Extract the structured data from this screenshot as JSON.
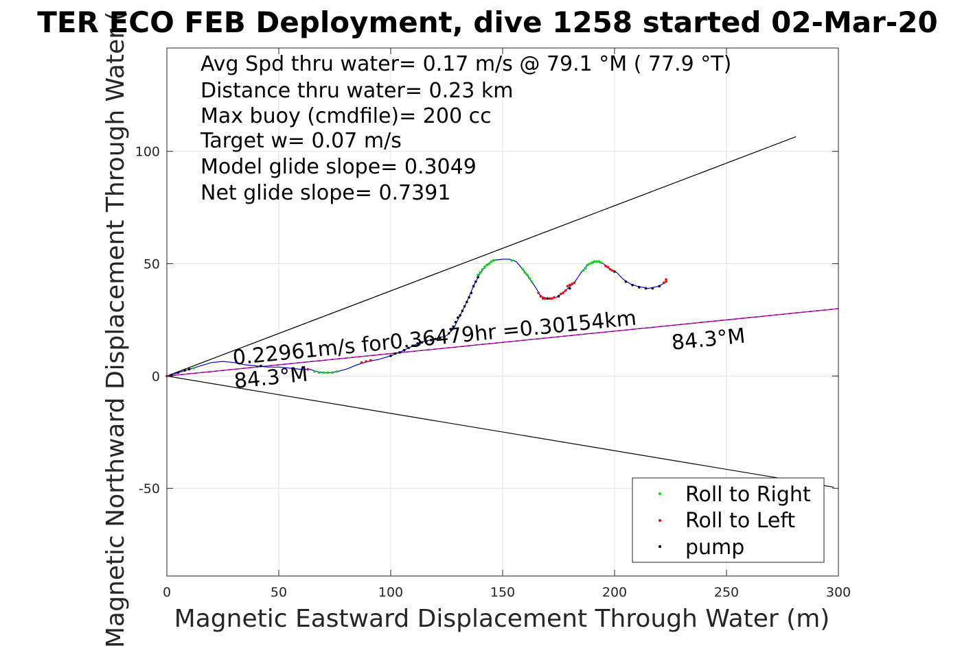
{
  "title": "TER ECO FEB Deployment, dive 1258 started 02-Mar-20",
  "info_lines": [
    "Avg Spd thru water=  0.17 m/s @  79.1 °M ( 77.9 °T)",
    "Distance thru water=  0.23 km",
    "Max buoy (cmdfile)= 200 cc",
    "Target w= 0.07 m/s",
    "Model glide slope= 0.3049",
    "Net glide slope= 0.7391"
  ],
  "annotations": {
    "speed_label": "0.22961m/s for0.36479hr =0.30154km",
    "heading_label_near": "84.3°M",
    "heading_label_far": "84.3°M"
  },
  "chart_data": {
    "type": "line",
    "title": "TER ECO FEB Deployment, dive 1258 started 02-Mar-20",
    "xlabel": "Magnetic Eastward Displacement Through Water (m)",
    "ylabel": "Magnetic Northward Displacement Through Water (",
    "xlim": [
      0,
      300
    ],
    "ylim": [
      -89,
      146
    ],
    "xticks": [
      0,
      50,
      100,
      150,
      200,
      250,
      300
    ],
    "yticks": [
      -50,
      0,
      50,
      100
    ],
    "grid": true,
    "legend_position": "bottom-right",
    "legend": [
      "Roll to Right",
      "Roll to Left",
      "pump"
    ],
    "colors": {
      "track": "#0000ff",
      "roll_right": "#00dd00",
      "roll_left": "#ff0000",
      "pump": "#000000",
      "cone": "#000000",
      "heading_line": "#cc00cc"
    },
    "track": [
      [
        0,
        0
      ],
      [
        5,
        1.5
      ],
      [
        10,
        3
      ],
      [
        15,
        4.5
      ],
      [
        20,
        6
      ],
      [
        25,
        6.5
      ],
      [
        30,
        6
      ],
      [
        35,
        5
      ],
      [
        40,
        4.5
      ],
      [
        45,
        4
      ],
      [
        50,
        4
      ],
      [
        55,
        3.5
      ],
      [
        60,
        3
      ],
      [
        64,
        3
      ],
      [
        67,
        2
      ],
      [
        70,
        1.5
      ],
      [
        73,
        1.5
      ],
      [
        76,
        2
      ],
      [
        80,
        3
      ],
      [
        85,
        5
      ],
      [
        90,
        6.5
      ],
      [
        95,
        7.5
      ],
      [
        100,
        9
      ],
      [
        105,
        11
      ],
      [
        110,
        13.5
      ],
      [
        115,
        15.5
      ],
      [
        120,
        16.5
      ],
      [
        125,
        18
      ],
      [
        128,
        21
      ],
      [
        131,
        27
      ],
      [
        134,
        33
      ],
      [
        137,
        40
      ],
      [
        140,
        46
      ],
      [
        143,
        49.5
      ],
      [
        146,
        51.5
      ],
      [
        150,
        52
      ],
      [
        153,
        52
      ],
      [
        156,
        51
      ],
      [
        159,
        47.5
      ],
      [
        162,
        43.5
      ],
      [
        165,
        39
      ],
      [
        167,
        35.5
      ],
      [
        170,
        34.5
      ],
      [
        174,
        35
      ],
      [
        178,
        38
      ],
      [
        182,
        41.5
      ],
      [
        185,
        46
      ],
      [
        188,
        49.5
      ],
      [
        192,
        51
      ],
      [
        195,
        50
      ],
      [
        198,
        47.5
      ],
      [
        201,
        46
      ],
      [
        204,
        43
      ],
      [
        207,
        41
      ],
      [
        210,
        40
      ],
      [
        215,
        39
      ],
      [
        220,
        40
      ],
      [
        223,
        42
      ]
    ],
    "pump_points": [
      [
        2,
        0.5
      ],
      [
        5,
        1.5
      ],
      [
        8,
        2.5
      ],
      [
        10,
        3
      ],
      [
        42,
        4.5
      ],
      [
        100,
        9
      ],
      [
        102,
        10
      ],
      [
        104,
        10.5
      ],
      [
        106,
        11.5
      ],
      [
        108,
        12.5
      ],
      [
        110,
        13.5
      ],
      [
        112,
        14.5
      ],
      [
        114,
        15
      ],
      [
        116,
        15.5
      ],
      [
        118,
        16
      ],
      [
        120,
        16.5
      ],
      [
        122,
        17
      ],
      [
        124,
        17.5
      ],
      [
        126,
        19
      ],
      [
        127,
        20.5
      ],
      [
        128,
        22
      ],
      [
        129,
        24
      ],
      [
        130,
        26
      ],
      [
        131,
        27
      ],
      [
        132,
        29
      ],
      [
        133,
        31
      ],
      [
        134,
        33
      ],
      [
        135,
        35
      ],
      [
        136,
        37
      ],
      [
        137,
        40
      ],
      [
        138,
        42
      ],
      [
        139,
        44
      ],
      [
        140,
        46
      ],
      [
        170,
        34.5
      ],
      [
        175,
        35.5
      ],
      [
        180,
        39
      ],
      [
        200,
        46.5
      ],
      [
        205,
        42
      ],
      [
        208,
        40.5
      ],
      [
        211,
        39.5
      ],
      [
        214,
        39
      ],
      [
        217,
        39
      ],
      [
        220,
        40
      ]
    ],
    "roll_right_points": [
      [
        0,
        0
      ],
      [
        12,
        3.5
      ],
      [
        66,
        2
      ],
      [
        68,
        1.5
      ],
      [
        70,
        1.5
      ],
      [
        72,
        1.5
      ],
      [
        74,
        1.5
      ],
      [
        76,
        2
      ],
      [
        139,
        45
      ],
      [
        140,
        46
      ],
      [
        141,
        47.5
      ],
      [
        142,
        48.5
      ],
      [
        143,
        49.5
      ],
      [
        144,
        50
      ],
      [
        145,
        51
      ],
      [
        146,
        51.5
      ],
      [
        154,
        51.5
      ],
      [
        159,
        47.5
      ],
      [
        160,
        46
      ],
      [
        161,
        45
      ],
      [
        162,
        43.5
      ],
      [
        163,
        42
      ],
      [
        186,
        47
      ],
      [
        187,
        48
      ],
      [
        188,
        49.5
      ],
      [
        189,
        50
      ],
      [
        190,
        50.5
      ],
      [
        191,
        51
      ],
      [
        192,
        51
      ],
      [
        193,
        51
      ],
      [
        194,
        50.5
      ]
    ],
    "roll_left_points": [
      [
        0,
        0
      ],
      [
        63,
        3
      ],
      [
        87,
        6
      ],
      [
        89,
        6.5
      ],
      [
        91,
        7
      ],
      [
        166,
        37
      ],
      [
        167,
        35.5
      ],
      [
        168,
        34.5
      ],
      [
        169,
        34.5
      ],
      [
        171,
        34.5
      ],
      [
        172,
        34.5
      ],
      [
        173,
        35
      ],
      [
        176,
        36.5
      ],
      [
        177,
        37
      ],
      [
        178,
        38
      ],
      [
        179,
        40
      ],
      [
        180,
        40.5
      ],
      [
        181,
        41
      ],
      [
        182,
        41.5
      ],
      [
        196,
        49
      ],
      [
        197,
        48.5
      ],
      [
        198,
        47.5
      ],
      [
        199,
        47
      ],
      [
        222,
        41.5
      ],
      [
        223,
        42
      ],
      [
        223,
        43
      ]
    ],
    "cone_lines": [
      [
        [
          0,
          0
        ],
        [
          281,
          106.5
        ]
      ],
      [
        [
          0,
          0
        ],
        [
          298,
          -49.5
        ]
      ]
    ],
    "heading_line": [
      [
        0,
        0
      ],
      [
        300,
        30
      ]
    ]
  }
}
